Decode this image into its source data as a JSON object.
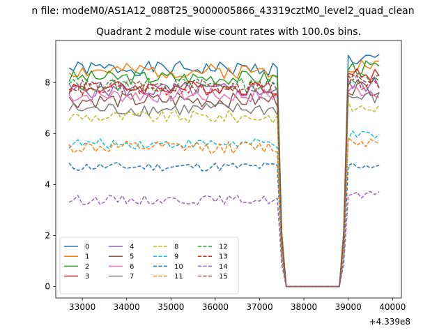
{
  "chart_data": {
    "type": "line",
    "suptitle": "n file: modeM0/AS1A12_088T25_9000005866_43319cztM0_level2_quad_clean",
    "title": "Quadrant 2 module wise count rates with 100.0s bins.",
    "xlabel": "",
    "ylabel": "",
    "x_offset_label": "+4.339e8",
    "xlim": [
      32400,
      40200
    ],
    "ylim": [
      -0.45,
      9.65
    ],
    "xticks": [
      33000,
      34000,
      35000,
      36000,
      37000,
      38000,
      39000,
      40000
    ],
    "yticks": [
      0,
      2,
      4,
      6,
      8
    ],
    "grid": false,
    "legend": {
      "placement": "lower-left",
      "ncol": 4
    },
    "x": {
      "start": 32700,
      "step": 100,
      "count": 71,
      "unit": "offset seconds"
    },
    "gap": {
      "ramp_start": 37500,
      "low_start": 37600,
      "low_end": 38800,
      "ramp_end": 38900,
      "zero_value": 0
    },
    "series": [
      {
        "name": "0",
        "color": "#1f77b4",
        "style": "solid",
        "level_before": 8.55,
        "level_after": 8.9,
        "noise": 0.28
      },
      {
        "name": "1",
        "color": "#ff7f0e",
        "style": "solid",
        "level_before": 8.45,
        "level_after": 8.7,
        "noise": 0.3
      },
      {
        "name": "2",
        "color": "#2ca02c",
        "style": "solid",
        "level_before": 8.2,
        "level_after": 8.6,
        "noise": 0.28
      },
      {
        "name": "3",
        "color": "#d62728",
        "style": "solid",
        "level_before": 7.8,
        "level_after": 8.3,
        "noise": 0.28
      },
      {
        "name": "4",
        "color": "#9467bd",
        "style": "solid",
        "level_before": 7.7,
        "level_after": 7.9,
        "noise": 0.3
      },
      {
        "name": "5",
        "color": "#8c564b",
        "style": "solid",
        "level_before": 7.3,
        "level_after": 7.8,
        "noise": 0.3
      },
      {
        "name": "6",
        "color": "#e377c2",
        "style": "solid",
        "level_before": 7.5,
        "level_after": 7.7,
        "noise": 0.3
      },
      {
        "name": "7",
        "color": "#7f7f7f",
        "style": "solid",
        "level_before": 6.95,
        "level_after": 7.4,
        "noise": 0.28
      },
      {
        "name": "8",
        "color": "#bcbd22",
        "style": "dashed",
        "level_before": 6.65,
        "level_after": 7.0,
        "noise": 0.25
      },
      {
        "name": "9",
        "color": "#17becf",
        "style": "dashed",
        "level_before": 5.6,
        "level_after": 5.9,
        "noise": 0.2
      },
      {
        "name": "10",
        "color": "#1f77b4",
        "style": "dashed",
        "level_before": 4.7,
        "level_after": 4.75,
        "noise": 0.18
      },
      {
        "name": "11",
        "color": "#ff7f0e",
        "style": "dashed",
        "level_before": 5.45,
        "level_after": 5.7,
        "noise": 0.25
      },
      {
        "name": "12",
        "color": "#2ca02c",
        "style": "dashed",
        "level_before": 7.9,
        "level_after": 8.2,
        "noise": 0.28
      },
      {
        "name": "13",
        "color": "#d62728",
        "style": "dashed",
        "level_before": 7.75,
        "level_after": 8.0,
        "noise": 0.28
      },
      {
        "name": "14",
        "color": "#9467bd",
        "style": "dashed",
        "level_before": 3.4,
        "level_after": 3.55,
        "noise": 0.18
      },
      {
        "name": "15",
        "color": "#8c564b",
        "style": "dashed",
        "level_before": 7.85,
        "level_after": 8.1,
        "noise": 0.28
      }
    ]
  }
}
